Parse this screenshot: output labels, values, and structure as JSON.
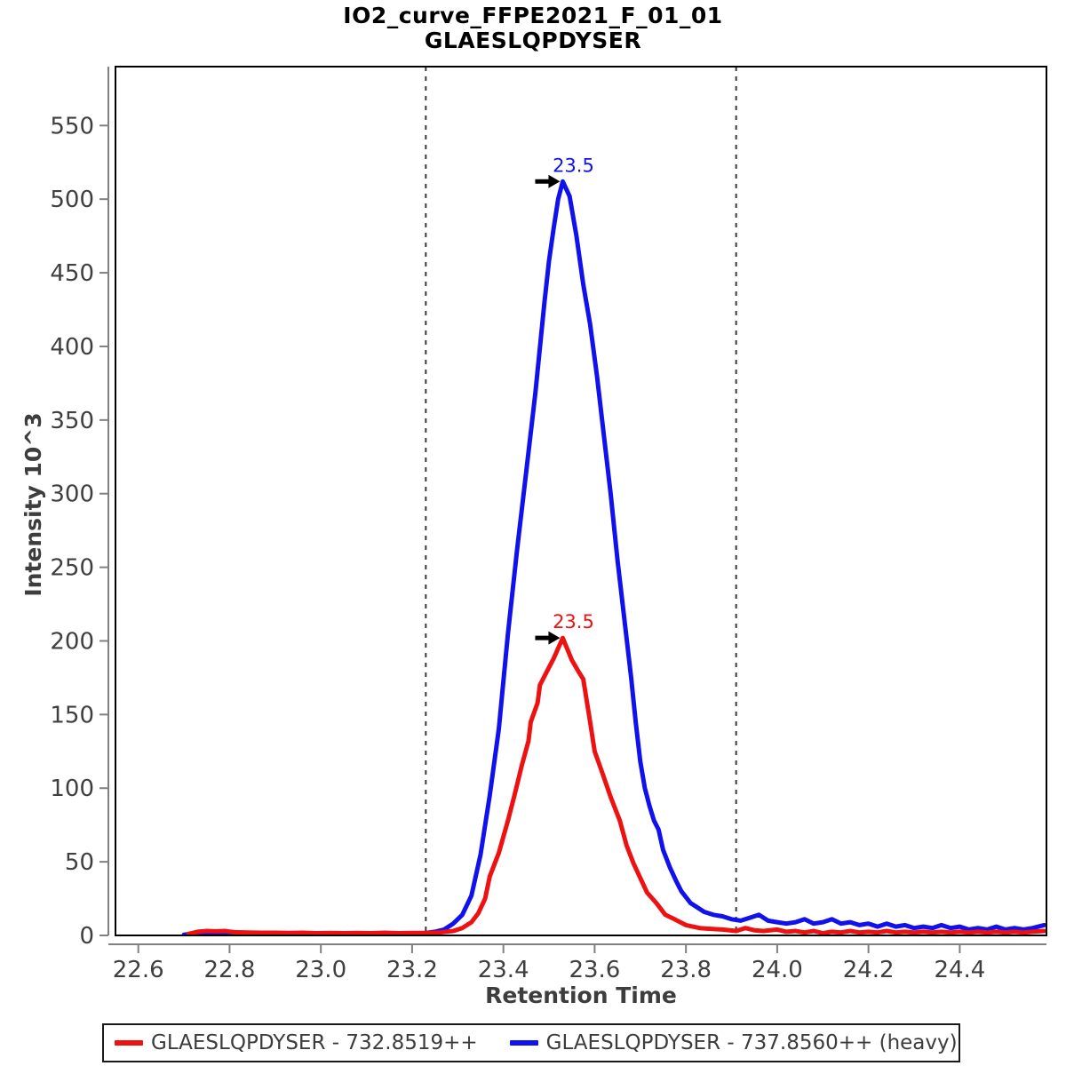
{
  "chart_data": {
    "type": "line",
    "title": "IO2_curve_FFPE2021_F_01_01",
    "subtitle": "GLAESLQPDYSER",
    "xlabel": "Retention Time",
    "ylabel": "Intensity 10^3",
    "xlim": [
      22.55,
      24.59
    ],
    "ylim": [
      0,
      590
    ],
    "xticks": [
      "22.6",
      "22.8",
      "23.0",
      "23.2",
      "23.4",
      "23.6",
      "23.8",
      "24.0",
      "24.2",
      "24.4"
    ],
    "yticks": [
      "0",
      "50",
      "100",
      "150",
      "200",
      "250",
      "300",
      "350",
      "400",
      "450",
      "500",
      "550"
    ],
    "grid": false,
    "legend_position": "bottom",
    "peak_boundaries_rt": [
      23.23,
      23.91
    ],
    "boundary_style": "dashed",
    "colors": {
      "frame": "#000000",
      "axis_line": "#808080",
      "tick_text": "#3f3f3f",
      "boundary": "#3a3a3a",
      "annotation_arrow": "#000000"
    },
    "series": [
      {
        "name": "GLAESLQPDYSER - 732.8519++",
        "color": "#ee1111",
        "peak": {
          "label": "23.5",
          "rt": 23.53,
          "intensity": 202
        },
        "points": [
          [
            22.71,
            1
          ],
          [
            22.73,
            2.5
          ],
          [
            22.75,
            3
          ],
          [
            22.77,
            2.8
          ],
          [
            22.79,
            3
          ],
          [
            22.81,
            2.2
          ],
          [
            22.84,
            2.0
          ],
          [
            22.87,
            1.8
          ],
          [
            22.9,
            1.8
          ],
          [
            22.93,
            1.6
          ],
          [
            22.96,
            1.8
          ],
          [
            22.99,
            1.5
          ],
          [
            23.02,
            1.7
          ],
          [
            23.05,
            1.5
          ],
          [
            23.08,
            1.7
          ],
          [
            23.11,
            1.5
          ],
          [
            23.14,
            1.8
          ],
          [
            23.17,
            1.5
          ],
          [
            23.2,
            1.7
          ],
          [
            23.23,
            1.6
          ],
          [
            23.26,
            2.0
          ],
          [
            23.29,
            3
          ],
          [
            23.31,
            5
          ],
          [
            23.33,
            9
          ],
          [
            23.345,
            15
          ],
          [
            23.36,
            25
          ],
          [
            23.37,
            40
          ],
          [
            23.39,
            56
          ],
          [
            23.41,
            78
          ],
          [
            23.425,
            96
          ],
          [
            23.44,
            115
          ],
          [
            23.455,
            132
          ],
          [
            23.46,
            145
          ],
          [
            23.475,
            158
          ],
          [
            23.48,
            170
          ],
          [
            23.5,
            182
          ],
          [
            23.51,
            188
          ],
          [
            23.53,
            202
          ],
          [
            23.55,
            187
          ],
          [
            23.565,
            179
          ],
          [
            23.575,
            174
          ],
          [
            23.59,
            145
          ],
          [
            23.6,
            125
          ],
          [
            23.615,
            112
          ],
          [
            23.635,
            94
          ],
          [
            23.655,
            78
          ],
          [
            23.67,
            61
          ],
          [
            23.685,
            49
          ],
          [
            23.7,
            39
          ],
          [
            23.715,
            29
          ],
          [
            23.735,
            22
          ],
          [
            23.755,
            14
          ],
          [
            23.775,
            11
          ],
          [
            23.8,
            7
          ],
          [
            23.83,
            5
          ],
          [
            23.85,
            4.5
          ],
          [
            23.88,
            4
          ],
          [
            23.91,
            3
          ],
          [
            23.93,
            5
          ],
          [
            23.95,
            3.5
          ],
          [
            23.97,
            3
          ],
          [
            24.0,
            4
          ],
          [
            24.02,
            2.5
          ],
          [
            24.04,
            3
          ],
          [
            24.06,
            2
          ],
          [
            24.08,
            3
          ],
          [
            24.1,
            1.5
          ],
          [
            24.12,
            2.5
          ],
          [
            24.14,
            2
          ],
          [
            24.16,
            3
          ],
          [
            24.18,
            2
          ],
          [
            24.2,
            2.5
          ],
          [
            24.22,
            2
          ],
          [
            24.24,
            3
          ],
          [
            24.26,
            2
          ],
          [
            24.28,
            2.5
          ],
          [
            24.3,
            2
          ],
          [
            24.32,
            2.5
          ],
          [
            24.34,
            2
          ],
          [
            24.36,
            2.5
          ],
          [
            24.38,
            2
          ],
          [
            24.4,
            2.5
          ],
          [
            24.42,
            2
          ],
          [
            24.44,
            2.5
          ],
          [
            24.46,
            2
          ],
          [
            24.48,
            2.5
          ],
          [
            24.5,
            2
          ],
          [
            24.52,
            2.5
          ],
          [
            24.54,
            2
          ],
          [
            24.56,
            2.5
          ],
          [
            24.585,
            3
          ]
        ]
      },
      {
        "name": "GLAESLQPDYSER - 737.8560++ (heavy)",
        "color": "#1111ee",
        "peak": {
          "label": "23.5",
          "rt": 23.53,
          "intensity": 512
        },
        "points": [
          [
            22.7,
            0.5
          ],
          [
            22.72,
            1.2
          ],
          [
            22.74,
            0.8
          ],
          [
            22.76,
            1.0
          ],
          [
            22.78,
            0.6
          ],
          [
            22.8,
            1.0
          ],
          [
            22.83,
            0.7
          ],
          [
            22.86,
            1.1
          ],
          [
            22.89,
            0.7
          ],
          [
            22.92,
            1.0
          ],
          [
            22.95,
            0.8
          ],
          [
            22.98,
            1.1
          ],
          [
            23.01,
            0.8
          ],
          [
            23.04,
            1.0
          ],
          [
            23.07,
            0.7
          ],
          [
            23.1,
            1.0
          ],
          [
            23.13,
            0.8
          ],
          [
            23.16,
            1.0
          ],
          [
            23.19,
            0.9
          ],
          [
            23.22,
            1.2
          ],
          [
            23.25,
            2.5
          ],
          [
            23.27,
            4
          ],
          [
            23.29,
            8
          ],
          [
            23.31,
            14
          ],
          [
            23.33,
            27
          ],
          [
            23.35,
            55
          ],
          [
            23.37,
            95
          ],
          [
            23.39,
            140
          ],
          [
            23.41,
            205
          ],
          [
            23.43,
            262
          ],
          [
            23.45,
            315
          ],
          [
            23.47,
            368
          ],
          [
            23.49,
            430
          ],
          [
            23.5,
            458
          ],
          [
            23.51,
            480
          ],
          [
            23.52,
            500
          ],
          [
            23.53,
            512
          ],
          [
            23.545,
            502
          ],
          [
            23.56,
            475
          ],
          [
            23.575,
            442
          ],
          [
            23.59,
            415
          ],
          [
            23.605,
            380
          ],
          [
            23.62,
            340
          ],
          [
            23.635,
            300
          ],
          [
            23.65,
            255
          ],
          [
            23.665,
            215
          ],
          [
            23.68,
            175
          ],
          [
            23.69,
            145
          ],
          [
            23.7,
            118
          ],
          [
            23.71,
            100
          ],
          [
            23.72,
            88
          ],
          [
            23.73,
            78
          ],
          [
            23.74,
            72
          ],
          [
            23.75,
            58
          ],
          [
            23.765,
            46
          ],
          [
            23.78,
            36
          ],
          [
            23.79,
            30
          ],
          [
            23.8,
            26
          ],
          [
            23.81,
            22
          ],
          [
            23.825,
            19
          ],
          [
            23.84,
            16
          ],
          [
            23.86,
            14
          ],
          [
            23.88,
            13
          ],
          [
            23.9,
            11
          ],
          [
            23.92,
            10
          ],
          [
            23.94,
            12
          ],
          [
            23.96,
            14
          ],
          [
            23.98,
            10
          ],
          [
            24.0,
            9
          ],
          [
            24.02,
            8
          ],
          [
            24.04,
            9
          ],
          [
            24.06,
            11
          ],
          [
            24.08,
            8
          ],
          [
            24.1,
            9
          ],
          [
            24.12,
            11
          ],
          [
            24.14,
            8
          ],
          [
            24.16,
            9
          ],
          [
            24.18,
            7
          ],
          [
            24.2,
            8
          ],
          [
            24.22,
            6
          ],
          [
            24.24,
            8
          ],
          [
            24.26,
            6
          ],
          [
            24.28,
            7
          ],
          [
            24.3,
            5
          ],
          [
            24.32,
            6
          ],
          [
            24.34,
            5
          ],
          [
            24.36,
            7
          ],
          [
            24.38,
            5
          ],
          [
            24.4,
            6
          ],
          [
            24.42,
            4
          ],
          [
            24.44,
            5
          ],
          [
            24.46,
            4
          ],
          [
            24.48,
            6
          ],
          [
            24.5,
            4
          ],
          [
            24.52,
            5
          ],
          [
            24.54,
            4
          ],
          [
            24.56,
            5
          ],
          [
            24.585,
            7
          ]
        ]
      }
    ]
  }
}
